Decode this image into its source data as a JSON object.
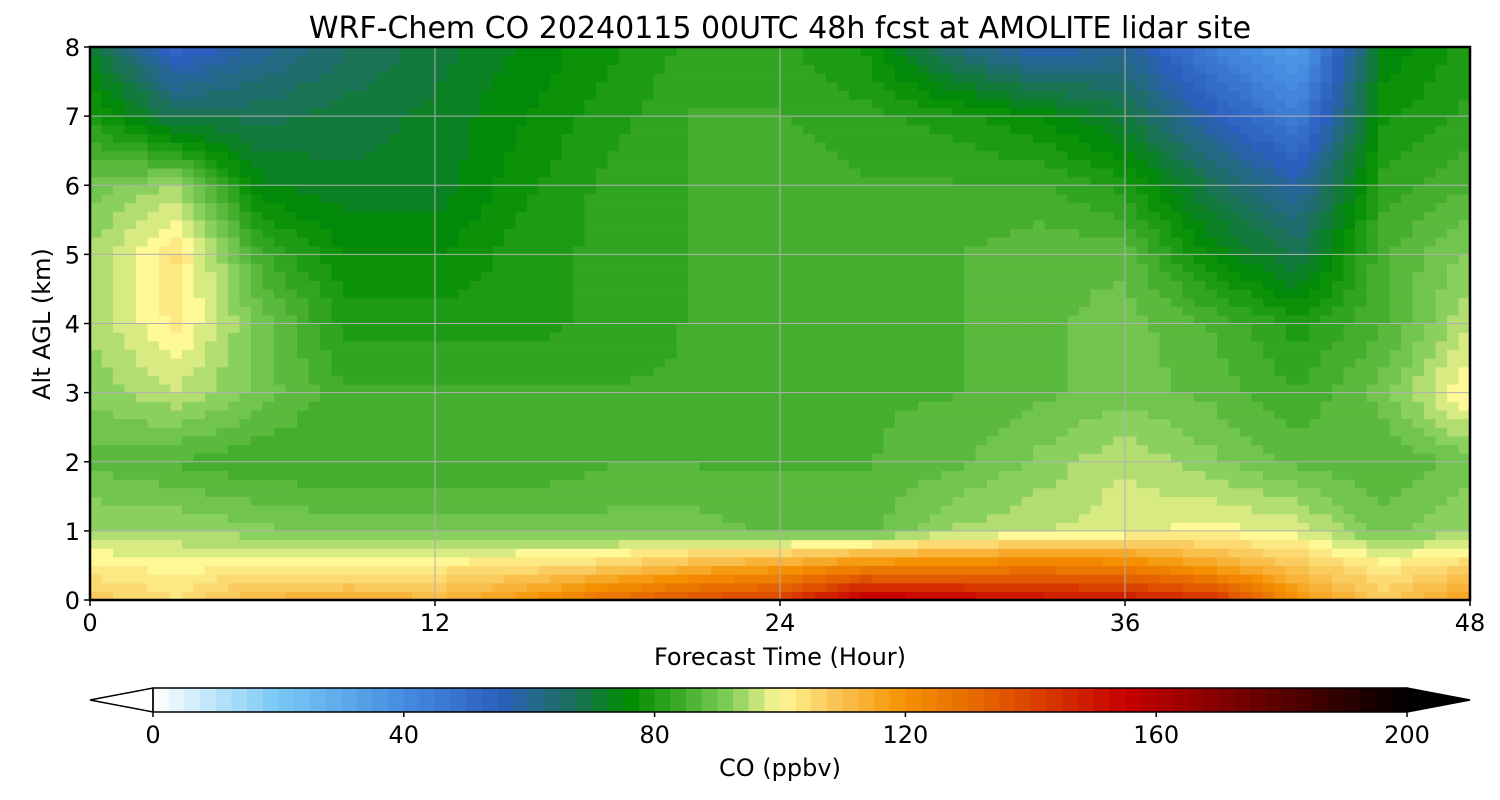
{
  "chart_data": {
    "type": "heatmap",
    "title": "WRF-Chem CO  20240115 00UTC 48h fcst at AMOLITE lidar site",
    "xlabel": "Forecast Time (Hour)",
    "ylabel": "Alt AGL (km)",
    "xlim": [
      0,
      48
    ],
    "ylim": [
      0,
      8
    ],
    "xticks": [
      "0",
      "12",
      "24",
      "36",
      "48"
    ],
    "yticks": [
      "0",
      "1",
      "2",
      "3",
      "4",
      "5",
      "6",
      "7",
      "8"
    ],
    "grid": true,
    "x": [
      0,
      3,
      6,
      9,
      12,
      15,
      18,
      21,
      24,
      27,
      30,
      33,
      36,
      39,
      42,
      45,
      48
    ],
    "y": [
      0,
      0.5,
      1,
      2,
      3,
      4,
      5,
      6,
      7,
      8
    ],
    "z_ppbv": [
      [
        108,
        104,
        112,
        114,
        112,
        118,
        130,
        138,
        142,
        160,
        156,
        152,
        150,
        146,
        120,
        108,
        118
      ],
      [
        102,
        100,
        102,
        100,
        102,
        104,
        106,
        112,
        116,
        122,
        124,
        126,
        124,
        116,
        108,
        102,
        106
      ],
      [
        94,
        94,
        92,
        90,
        90,
        90,
        90,
        90,
        88,
        88,
        94,
        96,
        98,
        100,
        98,
        90,
        94
      ],
      [
        88,
        86,
        84,
        84,
        84,
        84,
        86,
        86,
        86,
        86,
        88,
        92,
        96,
        92,
        88,
        86,
        90
      ],
      [
        92,
        96,
        90,
        84,
        84,
        84,
        84,
        84,
        84,
        86,
        86,
        88,
        90,
        88,
        84,
        90,
        102
      ],
      [
        94,
        102,
        90,
        80,
        80,
        80,
        82,
        84,
        84,
        86,
        86,
        88,
        90,
        86,
        80,
        86,
        96
      ],
      [
        94,
        104,
        84,
        76,
        76,
        80,
        82,
        84,
        86,
        86,
        86,
        88,
        88,
        76,
        68,
        86,
        92
      ],
      [
        90,
        94,
        74,
        72,
        72,
        78,
        82,
        84,
        86,
        84,
        84,
        84,
        80,
        68,
        58,
        82,
        86
      ],
      [
        80,
        68,
        68,
        70,
        72,
        76,
        80,
        84,
        84,
        82,
        80,
        76,
        70,
        56,
        44,
        78,
        82
      ],
      [
        72,
        52,
        60,
        66,
        70,
        74,
        78,
        82,
        82,
        78,
        64,
        56,
        60,
        44,
        34,
        74,
        80
      ]
    ],
    "colorbar": {
      "label": "CO  (ppbv)",
      "min": 0,
      "max": 200,
      "ticks": [
        "0",
        "40",
        "80",
        "120",
        "160",
        "200"
      ],
      "extend": "both"
    }
  }
}
